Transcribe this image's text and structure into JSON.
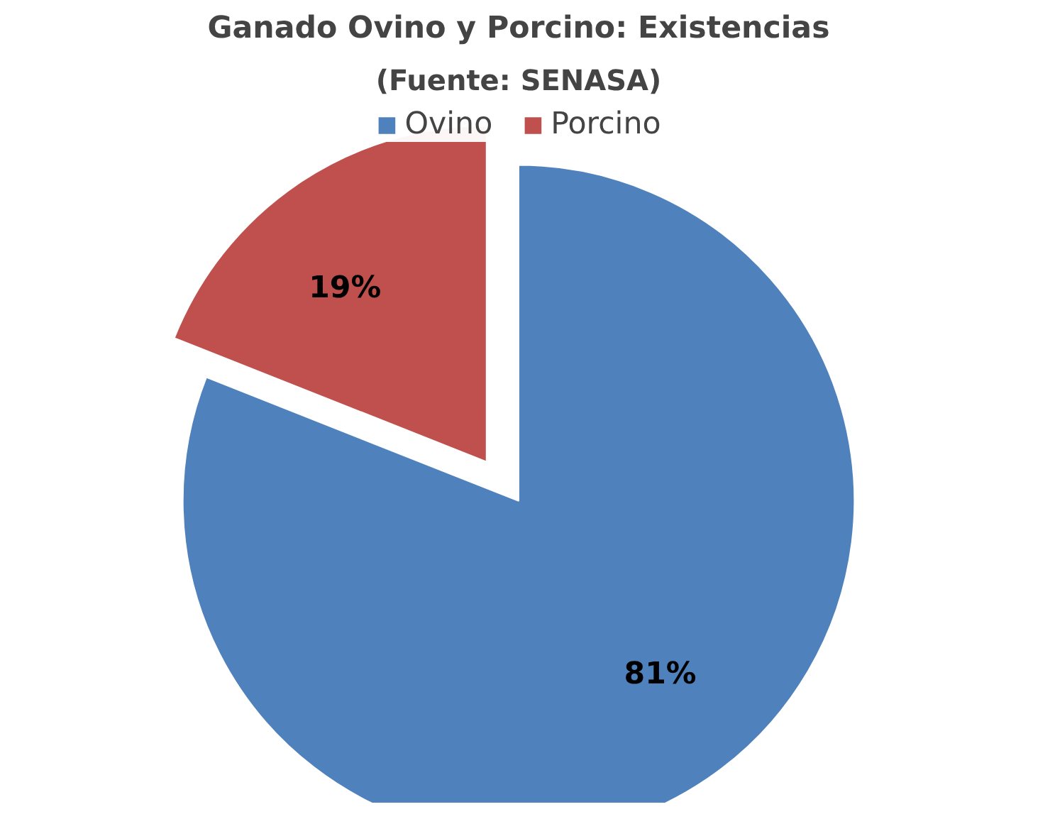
{
  "chart_data": {
    "type": "pie",
    "title": "Ganado Ovino y Porcino: Existencias",
    "subtitle": "(Fuente: SENASA)",
    "categories": [
      "Ovino",
      "Porcino"
    ],
    "values": [
      81,
      19
    ],
    "colors": [
      "#4f81bd",
      "#c0504d"
    ],
    "value_labels": [
      "81%",
      "19%"
    ],
    "legend": "top"
  }
}
